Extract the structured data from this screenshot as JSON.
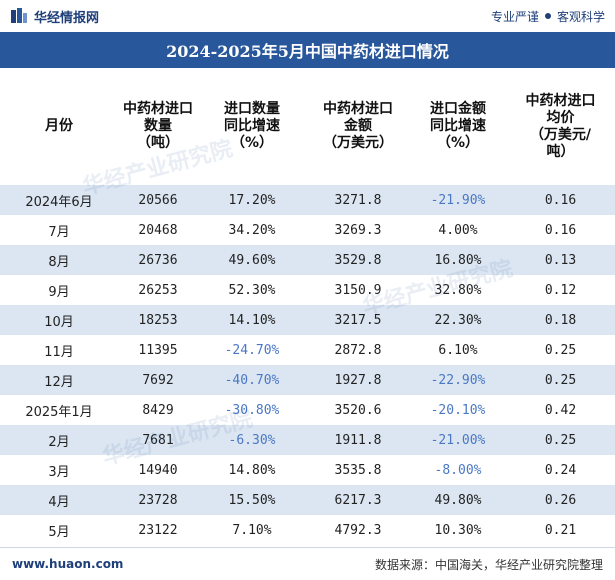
{
  "header": {
    "brand": "华经情报网",
    "tagline_left": "专业严谨",
    "tagline_right": "客观科学"
  },
  "title": "2024-2025年5月中国中药材进口情况",
  "columns": [
    [
      "月份"
    ],
    [
      "中药材进口",
      "数量",
      "（吨）"
    ],
    [
      "进口数量",
      "同比增速",
      "（%）"
    ],
    [
      "中药材进口",
      "金额",
      "（万美元）"
    ],
    [
      "进口金额",
      "同比增速",
      "（%）"
    ],
    [
      "中药材进口",
      "均价",
      "（万美元/",
      "吨）"
    ]
  ],
  "rows": [
    {
      "month": "2024年6月",
      "qty": "20566",
      "qty_yoy": "17.20%",
      "amt": "3271.8",
      "amt_yoy": "-21.90%",
      "price": "0.16"
    },
    {
      "month": "7月",
      "qty": "20468",
      "qty_yoy": "34.20%",
      "amt": "3269.3",
      "amt_yoy": "4.00%",
      "price": "0.16"
    },
    {
      "month": "8月",
      "qty": "26736",
      "qty_yoy": "49.60%",
      "amt": "3529.8",
      "amt_yoy": "16.80%",
      "price": "0.13"
    },
    {
      "month": "9月",
      "qty": "26253",
      "qty_yoy": "52.30%",
      "amt": "3150.9",
      "amt_yoy": "32.80%",
      "price": "0.12"
    },
    {
      "month": "10月",
      "qty": "18253",
      "qty_yoy": "14.10%",
      "amt": "3217.5",
      "amt_yoy": "22.30%",
      "price": "0.18"
    },
    {
      "month": "11月",
      "qty": "11395",
      "qty_yoy": "-24.70%",
      "amt": "2872.8",
      "amt_yoy": "6.10%",
      "price": "0.25"
    },
    {
      "month": "12月",
      "qty": "7692",
      "qty_yoy": "-40.70%",
      "amt": "1927.8",
      "amt_yoy": "-22.90%",
      "price": "0.25"
    },
    {
      "month": "2025年1月",
      "qty": "8429",
      "qty_yoy": "-30.80%",
      "amt": "3520.6",
      "amt_yoy": "-20.10%",
      "price": "0.42"
    },
    {
      "month": "2月",
      "qty": "7681",
      "qty_yoy": "-6.30%",
      "amt": "1911.8",
      "amt_yoy": "-21.00%",
      "price": "0.25"
    },
    {
      "month": "3月",
      "qty": "14940",
      "qty_yoy": "14.80%",
      "amt": "3535.8",
      "amt_yoy": "-8.00%",
      "price": "0.24"
    },
    {
      "month": "4月",
      "qty": "23728",
      "qty_yoy": "15.50%",
      "amt": "6217.3",
      "amt_yoy": "49.80%",
      "price": "0.26"
    },
    {
      "month": "5月",
      "qty": "23122",
      "qty_yoy": "7.10%",
      "amt": "4792.3",
      "amt_yoy": "10.30%",
      "price": "0.21"
    }
  ],
  "footer": {
    "site": "www.huaon.com",
    "source": "数据来源：中国海关，华经产业研究院整理"
  },
  "watermark": "华经产业研究院",
  "colors": {
    "title_bg": "#29579b",
    "stripe": "#dce6f2",
    "negative": "#4a78c4"
  }
}
